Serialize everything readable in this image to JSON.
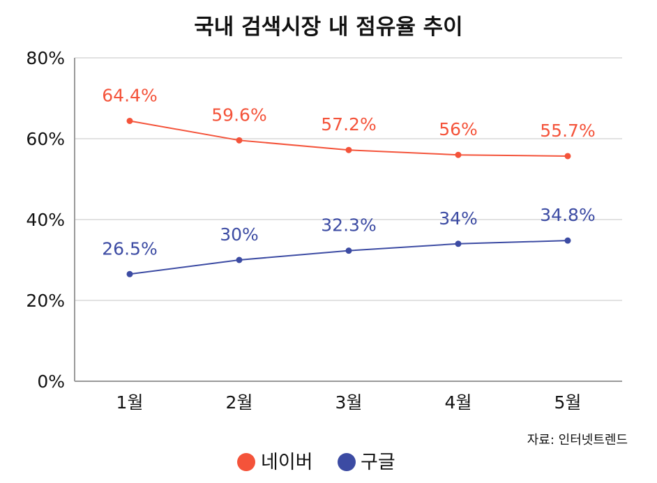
{
  "chart_data": {
    "type": "line",
    "title": "국내 검색시장 내 점유율 추이",
    "categories": [
      "1월",
      "2월",
      "3월",
      "4월",
      "5월"
    ],
    "yticks": [
      "0%",
      "20%",
      "40%",
      "60%",
      "80%"
    ],
    "ylim": [
      0,
      80
    ],
    "grid": true,
    "series": [
      {
        "name": "네이버",
        "color": "#f4533a",
        "values": [
          64.4,
          59.6,
          57.2,
          56,
          55.7
        ],
        "labels": [
          "64.4%",
          "59.6%",
          "57.2%",
          "56%",
          "55.7%"
        ]
      },
      {
        "name": "구글",
        "color": "#3c4ba3",
        "values": [
          26.5,
          30,
          32.3,
          34,
          34.8
        ],
        "labels": [
          "26.5%",
          "30%",
          "32.3%",
          "34%",
          "34.8%"
        ]
      }
    ],
    "source": "자료: 인터넷트렌드",
    "legend_position": "bottom-center"
  }
}
